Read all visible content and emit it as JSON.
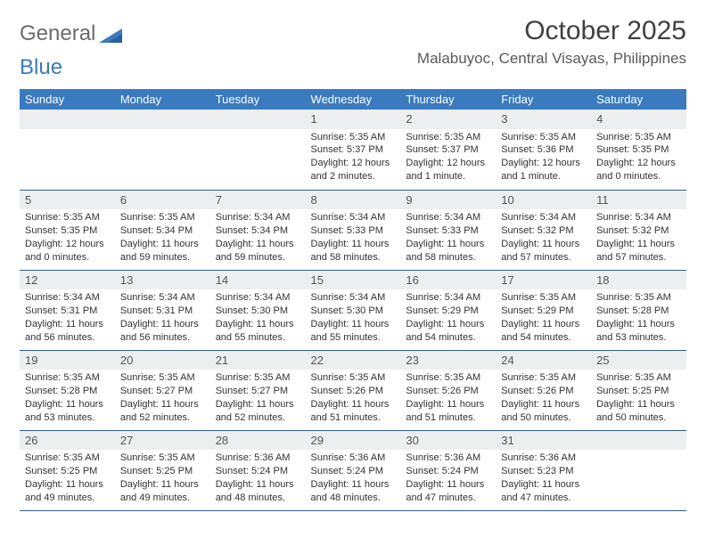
{
  "brand": {
    "word1": "General",
    "word2": "Blue"
  },
  "title": "October 2025",
  "location": "Malabuyoc, Central Visayas, Philippines",
  "colors": {
    "header_bg": "#3a7abf",
    "header_text": "#ffffff",
    "daynum_bg": "#eceef0",
    "cell_border": "#2f5d8f",
    "logo_gray": "#6b6b6b",
    "logo_blue": "#3a7abf"
  },
  "weekdays": [
    "Sunday",
    "Monday",
    "Tuesday",
    "Wednesday",
    "Thursday",
    "Friday",
    "Saturday"
  ],
  "cells": [
    [
      {
        "empty": true
      },
      {
        "empty": true
      },
      {
        "empty": true
      },
      {
        "day": "1",
        "sunrise": "Sunrise: 5:35 AM",
        "sunset": "Sunset: 5:37 PM",
        "daylight": "Daylight: 12 hours and 2 minutes."
      },
      {
        "day": "2",
        "sunrise": "Sunrise: 5:35 AM",
        "sunset": "Sunset: 5:37 PM",
        "daylight": "Daylight: 12 hours and 1 minute."
      },
      {
        "day": "3",
        "sunrise": "Sunrise: 5:35 AM",
        "sunset": "Sunset: 5:36 PM",
        "daylight": "Daylight: 12 hours and 1 minute."
      },
      {
        "day": "4",
        "sunrise": "Sunrise: 5:35 AM",
        "sunset": "Sunset: 5:35 PM",
        "daylight": "Daylight: 12 hours and 0 minutes."
      }
    ],
    [
      {
        "day": "5",
        "sunrise": "Sunrise: 5:35 AM",
        "sunset": "Sunset: 5:35 PM",
        "daylight": "Daylight: 12 hours and 0 minutes."
      },
      {
        "day": "6",
        "sunrise": "Sunrise: 5:35 AM",
        "sunset": "Sunset: 5:34 PM",
        "daylight": "Daylight: 11 hours and 59 minutes."
      },
      {
        "day": "7",
        "sunrise": "Sunrise: 5:34 AM",
        "sunset": "Sunset: 5:34 PM",
        "daylight": "Daylight: 11 hours and 59 minutes."
      },
      {
        "day": "8",
        "sunrise": "Sunrise: 5:34 AM",
        "sunset": "Sunset: 5:33 PM",
        "daylight": "Daylight: 11 hours and 58 minutes."
      },
      {
        "day": "9",
        "sunrise": "Sunrise: 5:34 AM",
        "sunset": "Sunset: 5:33 PM",
        "daylight": "Daylight: 11 hours and 58 minutes."
      },
      {
        "day": "10",
        "sunrise": "Sunrise: 5:34 AM",
        "sunset": "Sunset: 5:32 PM",
        "daylight": "Daylight: 11 hours and 57 minutes."
      },
      {
        "day": "11",
        "sunrise": "Sunrise: 5:34 AM",
        "sunset": "Sunset: 5:32 PM",
        "daylight": "Daylight: 11 hours and 57 minutes."
      }
    ],
    [
      {
        "day": "12",
        "sunrise": "Sunrise: 5:34 AM",
        "sunset": "Sunset: 5:31 PM",
        "daylight": "Daylight: 11 hours and 56 minutes."
      },
      {
        "day": "13",
        "sunrise": "Sunrise: 5:34 AM",
        "sunset": "Sunset: 5:31 PM",
        "daylight": "Daylight: 11 hours and 56 minutes."
      },
      {
        "day": "14",
        "sunrise": "Sunrise: 5:34 AM",
        "sunset": "Sunset: 5:30 PM",
        "daylight": "Daylight: 11 hours and 55 minutes."
      },
      {
        "day": "15",
        "sunrise": "Sunrise: 5:34 AM",
        "sunset": "Sunset: 5:30 PM",
        "daylight": "Daylight: 11 hours and 55 minutes."
      },
      {
        "day": "16",
        "sunrise": "Sunrise: 5:34 AM",
        "sunset": "Sunset: 5:29 PM",
        "daylight": "Daylight: 11 hours and 54 minutes."
      },
      {
        "day": "17",
        "sunrise": "Sunrise: 5:35 AM",
        "sunset": "Sunset: 5:29 PM",
        "daylight": "Daylight: 11 hours and 54 minutes."
      },
      {
        "day": "18",
        "sunrise": "Sunrise: 5:35 AM",
        "sunset": "Sunset: 5:28 PM",
        "daylight": "Daylight: 11 hours and 53 minutes."
      }
    ],
    [
      {
        "day": "19",
        "sunrise": "Sunrise: 5:35 AM",
        "sunset": "Sunset: 5:28 PM",
        "daylight": "Daylight: 11 hours and 53 minutes."
      },
      {
        "day": "20",
        "sunrise": "Sunrise: 5:35 AM",
        "sunset": "Sunset: 5:27 PM",
        "daylight": "Daylight: 11 hours and 52 minutes."
      },
      {
        "day": "21",
        "sunrise": "Sunrise: 5:35 AM",
        "sunset": "Sunset: 5:27 PM",
        "daylight": "Daylight: 11 hours and 52 minutes."
      },
      {
        "day": "22",
        "sunrise": "Sunrise: 5:35 AM",
        "sunset": "Sunset: 5:26 PM",
        "daylight": "Daylight: 11 hours and 51 minutes."
      },
      {
        "day": "23",
        "sunrise": "Sunrise: 5:35 AM",
        "sunset": "Sunset: 5:26 PM",
        "daylight": "Daylight: 11 hours and 51 minutes."
      },
      {
        "day": "24",
        "sunrise": "Sunrise: 5:35 AM",
        "sunset": "Sunset: 5:26 PM",
        "daylight": "Daylight: 11 hours and 50 minutes."
      },
      {
        "day": "25",
        "sunrise": "Sunrise: 5:35 AM",
        "sunset": "Sunset: 5:25 PM",
        "daylight": "Daylight: 11 hours and 50 minutes."
      }
    ],
    [
      {
        "day": "26",
        "sunrise": "Sunrise: 5:35 AM",
        "sunset": "Sunset: 5:25 PM",
        "daylight": "Daylight: 11 hours and 49 minutes."
      },
      {
        "day": "27",
        "sunrise": "Sunrise: 5:35 AM",
        "sunset": "Sunset: 5:25 PM",
        "daylight": "Daylight: 11 hours and 49 minutes."
      },
      {
        "day": "28",
        "sunrise": "Sunrise: 5:36 AM",
        "sunset": "Sunset: 5:24 PM",
        "daylight": "Daylight: 11 hours and 48 minutes."
      },
      {
        "day": "29",
        "sunrise": "Sunrise: 5:36 AM",
        "sunset": "Sunset: 5:24 PM",
        "daylight": "Daylight: 11 hours and 48 minutes."
      },
      {
        "day": "30",
        "sunrise": "Sunrise: 5:36 AM",
        "sunset": "Sunset: 5:24 PM",
        "daylight": "Daylight: 11 hours and 47 minutes."
      },
      {
        "day": "31",
        "sunrise": "Sunrise: 5:36 AM",
        "sunset": "Sunset: 5:23 PM",
        "daylight": "Daylight: 11 hours and 47 minutes."
      },
      {
        "empty": true
      }
    ]
  ]
}
